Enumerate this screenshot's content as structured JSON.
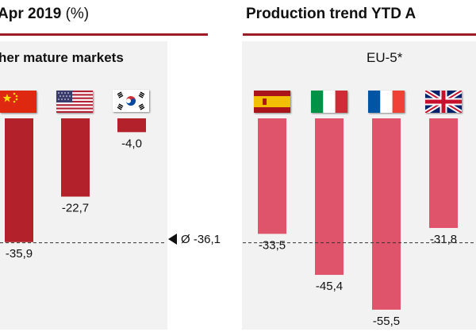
{
  "left_title": {
    "main": "Apr 2019",
    "unit": "(%)"
  },
  "right_title": "Production trend YTD A",
  "average_label": "Ø -36,1",
  "colors": {
    "dark_bar": "#b3222a",
    "light_bar": "#e0546b",
    "rule": "#9c1b24",
    "panel": "#f2f2f2"
  },
  "flags": {
    "china": "china-flag",
    "usa": "usa-flag",
    "korea": "south-korea-flag",
    "spain": "spain-flag",
    "italy": "italy-flag",
    "france": "france-flag",
    "uk": "uk-flag"
  },
  "chart_data": [
    {
      "type": "bar",
      "title": "her mature markets",
      "categories": [
        "China",
        "USA",
        "South Korea"
      ],
      "values": [
        -35.9,
        -22.7,
        -4.0
      ],
      "labels": [
        "-35,9",
        "-22,7",
        "-4,0"
      ]
    },
    {
      "type": "bar",
      "title": "EU-5*",
      "categories": [
        "Spain",
        "Italy",
        "France",
        "United Kingdom"
      ],
      "values": [
        -33.5,
        -45.4,
        -55.5,
        -31.8
      ],
      "labels": [
        "-33,5",
        "-45,4",
        "-55,5",
        "-31,8"
      ],
      "reference_line": {
        "value": -36.1
      }
    }
  ]
}
